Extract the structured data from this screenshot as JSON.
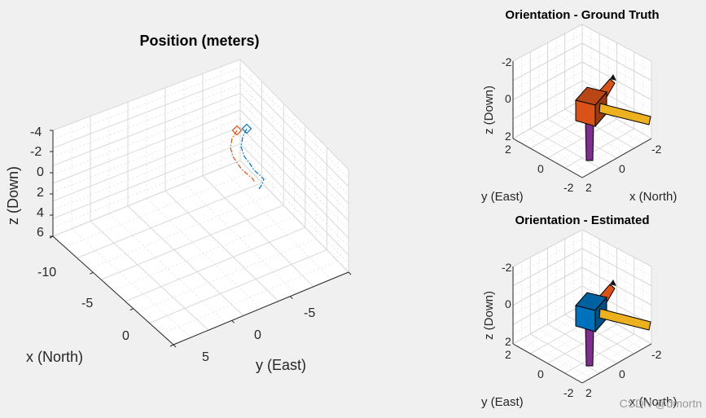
{
  "chart_data": [
    {
      "type": "line3d",
      "title": "Position (meters)",
      "xlabel": "x (North)",
      "ylabel": "y (East)",
      "zlabel": "z (Down)",
      "x_ticks": [
        "-10",
        "-5",
        "0"
      ],
      "y_ticks": [
        "5",
        "0",
        "-5"
      ],
      "z_ticks": [
        "-4",
        "-2",
        "0",
        "2",
        "4",
        "6"
      ],
      "grid": true,
      "series": [
        {
          "color": "#0072bd",
          "style": "dash-dot",
          "end_marker": "diamond",
          "points": [
            [
              303,
              158
            ],
            [
              298,
              168
            ],
            [
              296,
              180
            ],
            [
              300,
              192
            ],
            [
              307,
              201
            ],
            [
              312,
              209
            ],
            [
              318,
              214
            ],
            [
              324,
              220
            ],
            [
              322,
              226
            ],
            [
              318,
              232
            ]
          ]
        },
        {
          "color": "#d95319",
          "style": "dash-dot",
          "end_marker": "diamond",
          "points": [
            [
              291,
              160
            ],
            [
              285,
              170
            ],
            [
              283,
              181
            ],
            [
              286,
              192
            ],
            [
              292,
              201
            ],
            [
              297,
              208
            ],
            [
              304,
              214
            ],
            [
              310,
              219
            ],
            [
              313,
              224
            ]
          ]
        }
      ]
    },
    {
      "type": "orientation3d",
      "title": "Orientation - Ground Truth",
      "xlabel": "x (North)",
      "ylabel": "y (East)",
      "zlabel": "z (Down)",
      "x_ticks": [
        "2",
        "0",
        "-2"
      ],
      "y_ticks": [
        "2",
        "0",
        "-2"
      ],
      "z_ticks": [
        "-2",
        "0",
        "2"
      ],
      "body_color": "#d95319"
    },
    {
      "type": "orientation3d",
      "title": "Orientation - Estimated",
      "xlabel": "x (North)",
      "ylabel": "y (East)",
      "zlabel": "z (Down)",
      "x_ticks": [
        "2",
        "0",
        "-2"
      ],
      "y_ticks": [
        "2",
        "0",
        "-2"
      ],
      "z_ticks": [
        "-2",
        "0",
        "2"
      ],
      "body_color": "#0072bd"
    }
  ],
  "colors": {
    "axis_x": "#d95319",
    "axis_y": "#edb120",
    "axis_z": "#7e2f8e"
  },
  "watermark": "CSDN @dmortn"
}
